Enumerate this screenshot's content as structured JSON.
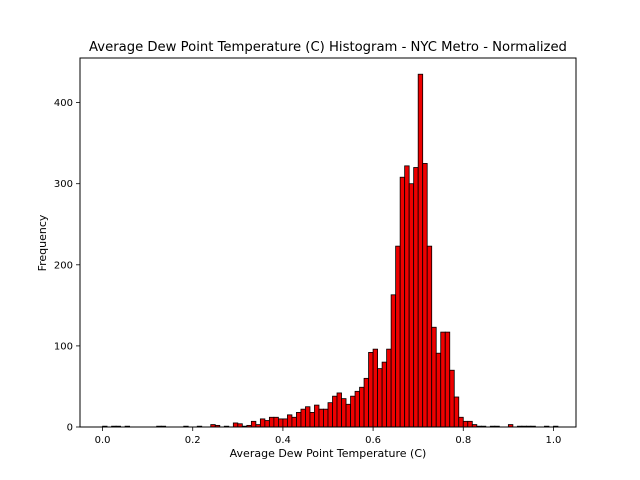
{
  "chart_data": {
    "type": "bar",
    "title": "Average Dew Point Temperature (C) Histogram - NYC Metro - Normalized",
    "xlabel": "Average Dew Point Temperature (C)",
    "ylabel": "Frequency",
    "xlim": [
      -0.05,
      1.05
    ],
    "ylim": [
      0,
      455
    ],
    "xticks": [
      0.0,
      0.2,
      0.4,
      0.6,
      0.8,
      1.0
    ],
    "xtick_labels": [
      "0.0",
      "0.2",
      "0.4",
      "0.6",
      "0.8",
      "1.0"
    ],
    "yticks": [
      0,
      100,
      200,
      300,
      400
    ],
    "ytick_labels": [
      "0",
      "100",
      "200",
      "300",
      "400"
    ],
    "bin_width": 0.01,
    "bin_start": 0.0,
    "grid": false,
    "bar_color": "#ee0000",
    "edge_color": "#000000",
    "values": [
      1,
      0,
      1,
      1,
      0,
      1,
      0,
      0,
      0,
      0,
      0,
      0,
      1,
      1,
      0,
      0,
      0,
      0,
      1,
      0,
      0,
      1,
      0,
      0,
      3,
      2,
      0,
      1,
      0,
      5,
      4,
      1,
      2,
      7,
      3,
      10,
      8,
      12,
      12,
      10,
      10,
      15,
      12,
      18,
      22,
      25,
      18,
      27,
      22,
      22,
      30,
      38,
      42,
      35,
      28,
      38,
      44,
      49,
      60,
      92,
      96,
      72,
      80,
      96,
      163,
      223,
      308,
      322,
      300,
      320,
      435,
      325,
      223,
      123,
      91,
      117,
      117,
      70,
      37,
      12,
      7,
      7,
      3,
      1,
      1,
      0,
      1,
      1,
      0,
      0,
      3,
      0,
      1,
      1,
      1,
      1,
      0,
      0,
      1,
      0,
      1
    ]
  }
}
